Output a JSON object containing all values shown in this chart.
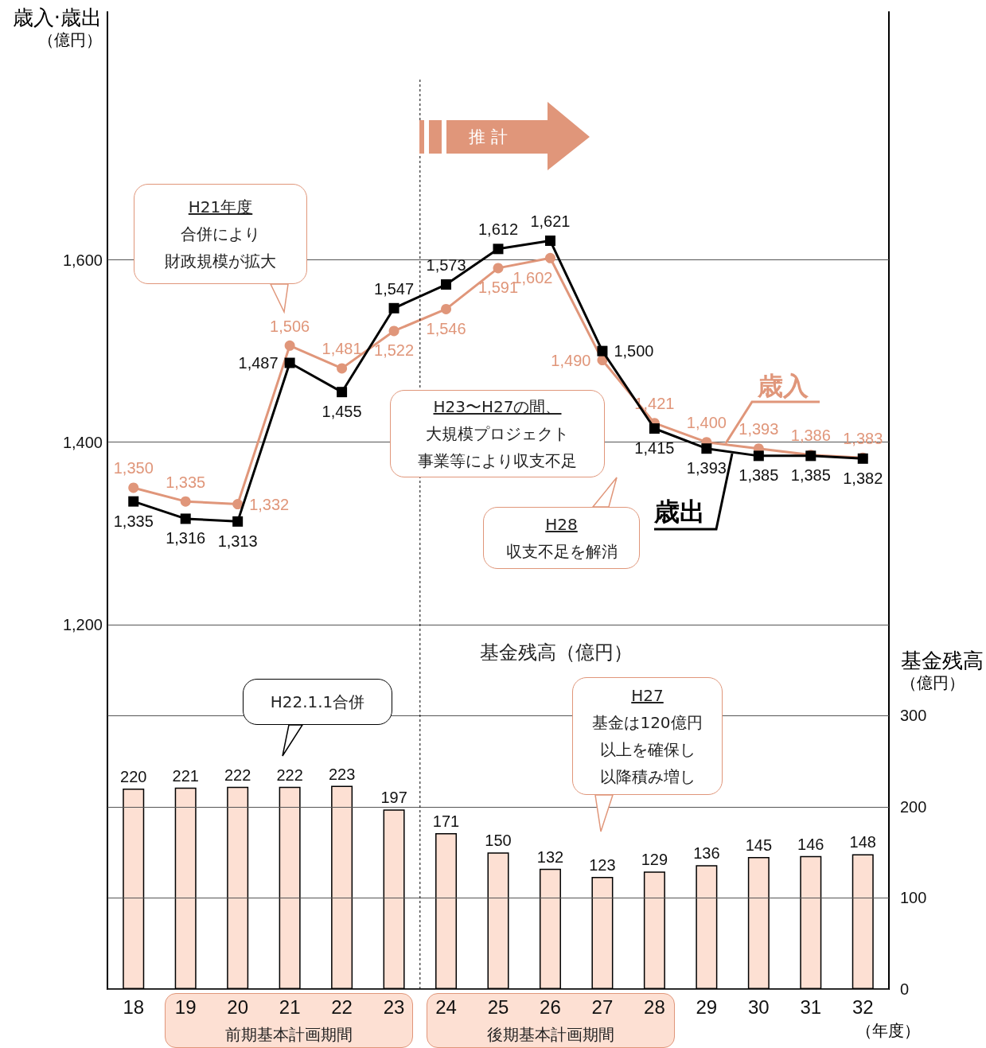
{
  "chart_data": {
    "type": "line",
    "xlabel": "（年度）",
    "ylabel": "歳入·歳出（億円）",
    "y2label": "基金残高（億円）",
    "categories": [
      "18",
      "19",
      "20",
      "21",
      "22",
      "23",
      "24",
      "25",
      "26",
      "27",
      "28",
      "29",
      "30",
      "31",
      "32"
    ],
    "series": [
      {
        "name": "歳入",
        "color": "#e0967a",
        "marker": "circle",
        "values": [
          1350,
          1335,
          1332,
          1506,
          1481,
          1522,
          1546,
          1591,
          1602,
          1490,
          1421,
          1400,
          1393,
          1386,
          1383
        ],
        "value_labels": [
          "1,350",
          "1,335",
          "1,332",
          "1,506",
          "1,481",
          "1,522",
          "1,546",
          "1,591",
          "1,602",
          "1,490",
          "1,421",
          "1,400",
          "1,393",
          "1,386",
          "1,383"
        ]
      },
      {
        "name": "歳出",
        "color": "#000000",
        "marker": "square",
        "values": [
          1335,
          1316,
          1313,
          1487,
          1455,
          1547,
          1573,
          1612,
          1621,
          1500,
          1415,
          1393,
          1385,
          1385,
          1382
        ],
        "value_labels": [
          "1,335",
          "1,316",
          "1,313",
          "1,487",
          "1,455",
          "1,547",
          "1,573",
          "1,612",
          "1,621",
          "1,500",
          "1,415",
          "1,393",
          "1,385",
          "1,385",
          "1,382"
        ]
      },
      {
        "type": "bar",
        "axis": "y2",
        "color": "#fde0d3",
        "values": [
          220,
          221,
          222,
          222,
          223,
          197,
          171,
          150,
          132,
          123,
          129,
          136,
          145,
          146,
          148
        ],
        "value_labels": [
          "220",
          "221",
          "222",
          "222",
          "223",
          "197",
          "171",
          "150",
          "132",
          "123",
          "129",
          "136",
          "145",
          "146",
          "148"
        ]
      }
    ],
    "ylim": [
      800,
      1872
    ],
    "yticks": [
      {
        "value": 1200,
        "label": "1,200"
      },
      {
        "value": 1400,
        "label": "1,400"
      },
      {
        "value": 1600,
        "label": "1,600"
      }
    ],
    "y2lim": [
      0,
      1072
    ],
    "y2ticks": [
      0,
      100,
      200,
      300
    ],
    "grid": "y",
    "ref_lines": [
      {
        "axis": "x",
        "value": "24",
        "color": "#000000",
        "line_style": "dotted"
      }
    ],
    "annotations": [
      "H21年度合併により財政規模が拡大",
      "H23〜H27の間、大規模プロジェクト事業等により収支不足",
      "H28収支不足を解消",
      "H22.1.1合併",
      "H27基金は120億円以上を確保し以降積み増し",
      "推 計",
      "基金残高（億円）",
      "前期基本計画期間",
      "後期基本計画期間"
    ]
  }
}
